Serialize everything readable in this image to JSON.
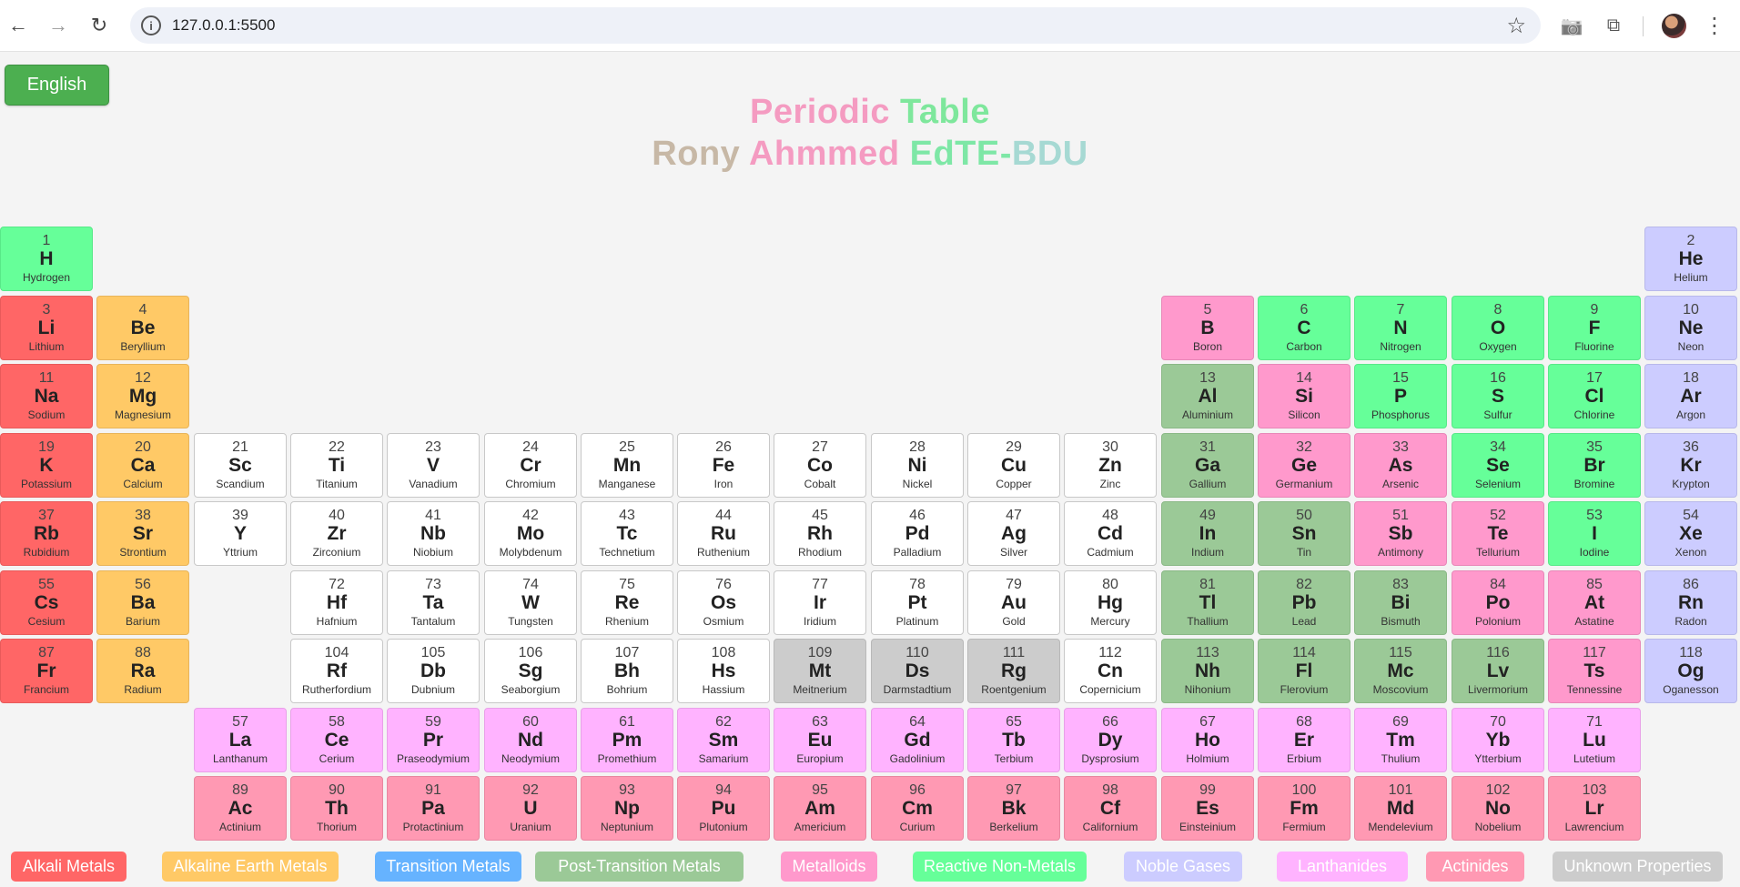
{
  "browser": {
    "url": "127.0.0.1:5500",
    "back_icon": "←",
    "forward_icon": "→",
    "reload_icon": "↻",
    "info_icon": "i",
    "star_icon": "☆",
    "camera_icon": "📷",
    "extension_icon": "⧉",
    "menu_icon": "⋮"
  },
  "page": {
    "language_button": "English",
    "title_line1": [
      {
        "text": "Periodic ",
        "color": "#f49bc1"
      },
      {
        "text": "Table",
        "color": "#7ee79c"
      }
    ],
    "title_line2": [
      {
        "text": "Rony ",
        "color": "#c7b8a6"
      },
      {
        "text": "Ahmmed ",
        "color": "#f49bc1"
      },
      {
        "text": "EdTE-",
        "color": "#7ee7a6"
      },
      {
        "text": "BDU",
        "color": "#a6d9d3"
      }
    ]
  },
  "elements": [
    {
      "n": 1,
      "s": "H",
      "name": "Hydrogen",
      "c": "nonmetal",
      "col": 1,
      "row": 1
    },
    {
      "n": 2,
      "s": "He",
      "name": "Helium",
      "c": "noble",
      "col": 18,
      "row": 1
    },
    {
      "n": 3,
      "s": "Li",
      "name": "Lithium",
      "c": "alkali",
      "col": 1,
      "row": 2
    },
    {
      "n": 4,
      "s": "Be",
      "name": "Beryllium",
      "c": "alkaline",
      "col": 2,
      "row": 2
    },
    {
      "n": 5,
      "s": "B",
      "name": "Boron",
      "c": "metalloid",
      "col": 13,
      "row": 2
    },
    {
      "n": 6,
      "s": "C",
      "name": "Carbon",
      "c": "nonmetal",
      "col": 14,
      "row": 2
    },
    {
      "n": 7,
      "s": "N",
      "name": "Nitrogen",
      "c": "nonmetal",
      "col": 15,
      "row": 2
    },
    {
      "n": 8,
      "s": "O",
      "name": "Oxygen",
      "c": "nonmetal",
      "col": 16,
      "row": 2
    },
    {
      "n": 9,
      "s": "F",
      "name": "Fluorine",
      "c": "nonmetal",
      "col": 17,
      "row": 2
    },
    {
      "n": 10,
      "s": "Ne",
      "name": "Neon",
      "c": "noble",
      "col": 18,
      "row": 2
    },
    {
      "n": 11,
      "s": "Na",
      "name": "Sodium",
      "c": "alkali",
      "col": 1,
      "row": 3
    },
    {
      "n": 12,
      "s": "Mg",
      "name": "Magnesium",
      "c": "alkaline",
      "col": 2,
      "row": 3
    },
    {
      "n": 13,
      "s": "Al",
      "name": "Aluminium",
      "c": "post",
      "col": 13,
      "row": 3
    },
    {
      "n": 14,
      "s": "Si",
      "name": "Silicon",
      "c": "metalloid",
      "col": 14,
      "row": 3
    },
    {
      "n": 15,
      "s": "P",
      "name": "Phosphorus",
      "c": "nonmetal",
      "col": 15,
      "row": 3
    },
    {
      "n": 16,
      "s": "S",
      "name": "Sulfur",
      "c": "nonmetal",
      "col": 16,
      "row": 3
    },
    {
      "n": 17,
      "s": "Cl",
      "name": "Chlorine",
      "c": "nonmetal",
      "col": 17,
      "row": 3
    },
    {
      "n": 18,
      "s": "Ar",
      "name": "Argon",
      "c": "noble",
      "col": 18,
      "row": 3
    },
    {
      "n": 19,
      "s": "K",
      "name": "Potassium",
      "c": "alkali",
      "col": 1,
      "row": 4
    },
    {
      "n": 20,
      "s": "Ca",
      "name": "Calcium",
      "c": "alkaline",
      "col": 2,
      "row": 4
    },
    {
      "n": 21,
      "s": "Sc",
      "name": "Scandium",
      "c": "transition",
      "col": 3,
      "row": 4
    },
    {
      "n": 22,
      "s": "Ti",
      "name": "Titanium",
      "c": "transition",
      "col": 4,
      "row": 4
    },
    {
      "n": 23,
      "s": "V",
      "name": "Vanadium",
      "c": "transition",
      "col": 5,
      "row": 4
    },
    {
      "n": 24,
      "s": "Cr",
      "name": "Chromium",
      "c": "transition",
      "col": 6,
      "row": 4
    },
    {
      "n": 25,
      "s": "Mn",
      "name": "Manganese",
      "c": "transition",
      "col": 7,
      "row": 4
    },
    {
      "n": 26,
      "s": "Fe",
      "name": "Iron",
      "c": "transition",
      "col": 8,
      "row": 4
    },
    {
      "n": 27,
      "s": "Co",
      "name": "Cobalt",
      "c": "transition",
      "col": 9,
      "row": 4
    },
    {
      "n": 28,
      "s": "Ni",
      "name": "Nickel",
      "c": "transition",
      "col": 10,
      "row": 4
    },
    {
      "n": 29,
      "s": "Cu",
      "name": "Copper",
      "c": "transition",
      "col": 11,
      "row": 4
    },
    {
      "n": 30,
      "s": "Zn",
      "name": "Zinc",
      "c": "transition",
      "col": 12,
      "row": 4
    },
    {
      "n": 31,
      "s": "Ga",
      "name": "Gallium",
      "c": "post",
      "col": 13,
      "row": 4
    },
    {
      "n": 32,
      "s": "Ge",
      "name": "Germanium",
      "c": "metalloid",
      "col": 14,
      "row": 4
    },
    {
      "n": 33,
      "s": "As",
      "name": "Arsenic",
      "c": "metalloid",
      "col": 15,
      "row": 4
    },
    {
      "n": 34,
      "s": "Se",
      "name": "Selenium",
      "c": "nonmetal",
      "col": 16,
      "row": 4
    },
    {
      "n": 35,
      "s": "Br",
      "name": "Bromine",
      "c": "nonmetal",
      "col": 17,
      "row": 4
    },
    {
      "n": 36,
      "s": "Kr",
      "name": "Krypton",
      "c": "noble",
      "col": 18,
      "row": 4
    },
    {
      "n": 37,
      "s": "Rb",
      "name": "Rubidium",
      "c": "alkali",
      "col": 1,
      "row": 5
    },
    {
      "n": 38,
      "s": "Sr",
      "name": "Strontium",
      "c": "alkaline",
      "col": 2,
      "row": 5
    },
    {
      "n": 39,
      "s": "Y",
      "name": "Yttrium",
      "c": "transition",
      "col": 3,
      "row": 5
    },
    {
      "n": 40,
      "s": "Zr",
      "name": "Zirconium",
      "c": "transition",
      "col": 4,
      "row": 5
    },
    {
      "n": 41,
      "s": "Nb",
      "name": "Niobium",
      "c": "transition",
      "col": 5,
      "row": 5
    },
    {
      "n": 42,
      "s": "Mo",
      "name": "Molybdenum",
      "c": "transition",
      "col": 6,
      "row": 5
    },
    {
      "n": 43,
      "s": "Tc",
      "name": "Technetium",
      "c": "transition",
      "col": 7,
      "row": 5
    },
    {
      "n": 44,
      "s": "Ru",
      "name": "Ruthenium",
      "c": "transition",
      "col": 8,
      "row": 5
    },
    {
      "n": 45,
      "s": "Rh",
      "name": "Rhodium",
      "c": "transition",
      "col": 9,
      "row": 5
    },
    {
      "n": 46,
      "s": "Pd",
      "name": "Palladium",
      "c": "transition",
      "col": 10,
      "row": 5
    },
    {
      "n": 47,
      "s": "Ag",
      "name": "Silver",
      "c": "transition",
      "col": 11,
      "row": 5
    },
    {
      "n": 48,
      "s": "Cd",
      "name": "Cadmium",
      "c": "transition",
      "col": 12,
      "row": 5
    },
    {
      "n": 49,
      "s": "In",
      "name": "Indium",
      "c": "post",
      "col": 13,
      "row": 5
    },
    {
      "n": 50,
      "s": "Sn",
      "name": "Tin",
      "c": "post",
      "col": 14,
      "row": 5
    },
    {
      "n": 51,
      "s": "Sb",
      "name": "Antimony",
      "c": "metalloid",
      "col": 15,
      "row": 5
    },
    {
      "n": 52,
      "s": "Te",
      "name": "Tellurium",
      "c": "metalloid",
      "col": 16,
      "row": 5
    },
    {
      "n": 53,
      "s": "I",
      "name": "Iodine",
      "c": "nonmetal",
      "col": 17,
      "row": 5
    },
    {
      "n": 54,
      "s": "Xe",
      "name": "Xenon",
      "c": "noble",
      "col": 18,
      "row": 5
    },
    {
      "n": 55,
      "s": "Cs",
      "name": "Cesium",
      "c": "alkali",
      "col": 1,
      "row": 6
    },
    {
      "n": 56,
      "s": "Ba",
      "name": "Barium",
      "c": "alkaline",
      "col": 2,
      "row": 6
    },
    {
      "n": 72,
      "s": "Hf",
      "name": "Hafnium",
      "c": "transition",
      "col": 4,
      "row": 6
    },
    {
      "n": 73,
      "s": "Ta",
      "name": "Tantalum",
      "c": "transition",
      "col": 5,
      "row": 6
    },
    {
      "n": 74,
      "s": "W",
      "name": "Tungsten",
      "c": "transition",
      "col": 6,
      "row": 6
    },
    {
      "n": 75,
      "s": "Re",
      "name": "Rhenium",
      "c": "transition",
      "col": 7,
      "row": 6
    },
    {
      "n": 76,
      "s": "Os",
      "name": "Osmium",
      "c": "transition",
      "col": 8,
      "row": 6
    },
    {
      "n": 77,
      "s": "Ir",
      "name": "Iridium",
      "c": "transition",
      "col": 9,
      "row": 6
    },
    {
      "n": 78,
      "s": "Pt",
      "name": "Platinum",
      "c": "transition",
      "col": 10,
      "row": 6
    },
    {
      "n": 79,
      "s": "Au",
      "name": "Gold",
      "c": "transition",
      "col": 11,
      "row": 6
    },
    {
      "n": 80,
      "s": "Hg",
      "name": "Mercury",
      "c": "transition",
      "col": 12,
      "row": 6
    },
    {
      "n": 81,
      "s": "Tl",
      "name": "Thallium",
      "c": "post",
      "col": 13,
      "row": 6
    },
    {
      "n": 82,
      "s": "Pb",
      "name": "Lead",
      "c": "post",
      "col": 14,
      "row": 6
    },
    {
      "n": 83,
      "s": "Bi",
      "name": "Bismuth",
      "c": "post",
      "col": 15,
      "row": 6
    },
    {
      "n": 84,
      "s": "Po",
      "name": "Polonium",
      "c": "metalloid",
      "col": 16,
      "row": 6
    },
    {
      "n": 85,
      "s": "At",
      "name": "Astatine",
      "c": "metalloid",
      "col": 17,
      "row": 6
    },
    {
      "n": 86,
      "s": "Rn",
      "name": "Radon",
      "c": "noble",
      "col": 18,
      "row": 6
    },
    {
      "n": 87,
      "s": "Fr",
      "name": "Francium",
      "c": "alkali",
      "col": 1,
      "row": 7
    },
    {
      "n": 88,
      "s": "Ra",
      "name": "Radium",
      "c": "alkaline",
      "col": 2,
      "row": 7
    },
    {
      "n": 104,
      "s": "Rf",
      "name": "Rutherfordium",
      "c": "transition",
      "col": 4,
      "row": 7
    },
    {
      "n": 105,
      "s": "Db",
      "name": "Dubnium",
      "c": "transition",
      "col": 5,
      "row": 7
    },
    {
      "n": 106,
      "s": "Sg",
      "name": "Seaborgium",
      "c": "transition",
      "col": 6,
      "row": 7
    },
    {
      "n": 107,
      "s": "Bh",
      "name": "Bohrium",
      "c": "transition",
      "col": 7,
      "row": 7
    },
    {
      "n": 108,
      "s": "Hs",
      "name": "Hassium",
      "c": "transition",
      "col": 8,
      "row": 7
    },
    {
      "n": 109,
      "s": "Mt",
      "name": "Meitnerium",
      "c": "unknown",
      "col": 9,
      "row": 7
    },
    {
      "n": 110,
      "s": "Ds",
      "name": "Darmstadtium",
      "c": "unknown",
      "col": 10,
      "row": 7
    },
    {
      "n": 111,
      "s": "Rg",
      "name": "Roentgenium",
      "c": "unknown",
      "col": 11,
      "row": 7
    },
    {
      "n": 112,
      "s": "Cn",
      "name": "Copernicium",
      "c": "transition",
      "col": 12,
      "row": 7
    },
    {
      "n": 113,
      "s": "Nh",
      "name": "Nihonium",
      "c": "post",
      "col": 13,
      "row": 7
    },
    {
      "n": 114,
      "s": "Fl",
      "name": "Flerovium",
      "c": "post",
      "col": 14,
      "row": 7
    },
    {
      "n": 115,
      "s": "Mc",
      "name": "Moscovium",
      "c": "post",
      "col": 15,
      "row": 7
    },
    {
      "n": 116,
      "s": "Lv",
      "name": "Livermorium",
      "c": "post",
      "col": 16,
      "row": 7
    },
    {
      "n": 117,
      "s": "Ts",
      "name": "Tennessine",
      "c": "metalloid",
      "col": 17,
      "row": 7
    },
    {
      "n": 118,
      "s": "Og",
      "name": "Oganesson",
      "c": "noble",
      "col": 18,
      "row": 7
    },
    {
      "n": 57,
      "s": "La",
      "name": "Lanthanum",
      "c": "lanth",
      "col": 3,
      "row": 8
    },
    {
      "n": 58,
      "s": "Ce",
      "name": "Cerium",
      "c": "lanth",
      "col": 4,
      "row": 8
    },
    {
      "n": 59,
      "s": "Pr",
      "name": "Praseodymium",
      "c": "lanth",
      "col": 5,
      "row": 8
    },
    {
      "n": 60,
      "s": "Nd",
      "name": "Neodymium",
      "c": "lanth",
      "col": 6,
      "row": 8
    },
    {
      "n": 61,
      "s": "Pm",
      "name": "Promethium",
      "c": "lanth",
      "col": 7,
      "row": 8
    },
    {
      "n": 62,
      "s": "Sm",
      "name": "Samarium",
      "c": "lanth",
      "col": 8,
      "row": 8
    },
    {
      "n": 63,
      "s": "Eu",
      "name": "Europium",
      "c": "lanth",
      "col": 9,
      "row": 8
    },
    {
      "n": 64,
      "s": "Gd",
      "name": "Gadolinium",
      "c": "lanth",
      "col": 10,
      "row": 8
    },
    {
      "n": 65,
      "s": "Tb",
      "name": "Terbium",
      "c": "lanth",
      "col": 11,
      "row": 8
    },
    {
      "n": 66,
      "s": "Dy",
      "name": "Dysprosium",
      "c": "lanth",
      "col": 12,
      "row": 8
    },
    {
      "n": 67,
      "s": "Ho",
      "name": "Holmium",
      "c": "lanth",
      "col": 13,
      "row": 8
    },
    {
      "n": 68,
      "s": "Er",
      "name": "Erbium",
      "c": "lanth",
      "col": 14,
      "row": 8
    },
    {
      "n": 69,
      "s": "Tm",
      "name": "Thulium",
      "c": "lanth",
      "col": 15,
      "row": 8
    },
    {
      "n": 70,
      "s": "Yb",
      "name": "Ytterbium",
      "c": "lanth",
      "col": 16,
      "row": 8
    },
    {
      "n": 71,
      "s": "Lu",
      "name": "Lutetium",
      "c": "lanth",
      "col": 17,
      "row": 8
    },
    {
      "n": 89,
      "s": "Ac",
      "name": "Actinium",
      "c": "actin",
      "col": 3,
      "row": 9
    },
    {
      "n": 90,
      "s": "Th",
      "name": "Thorium",
      "c": "actin",
      "col": 4,
      "row": 9
    },
    {
      "n": 91,
      "s": "Pa",
      "name": "Protactinium",
      "c": "actin",
      "col": 5,
      "row": 9
    },
    {
      "n": 92,
      "s": "U",
      "name": "Uranium",
      "c": "actin",
      "col": 6,
      "row": 9
    },
    {
      "n": 93,
      "s": "Np",
      "name": "Neptunium",
      "c": "actin",
      "col": 7,
      "row": 9
    },
    {
      "n": 94,
      "s": "Pu",
      "name": "Plutonium",
      "c": "actin",
      "col": 8,
      "row": 9
    },
    {
      "n": 95,
      "s": "Am",
      "name": "Americium",
      "c": "actin",
      "col": 9,
      "row": 9
    },
    {
      "n": 96,
      "s": "Cm",
      "name": "Curium",
      "c": "actin",
      "col": 10,
      "row": 9
    },
    {
      "n": 97,
      "s": "Bk",
      "name": "Berkelium",
      "c": "actin",
      "col": 11,
      "row": 9
    },
    {
      "n": 98,
      "s": "Cf",
      "name": "Californium",
      "c": "actin",
      "col": 12,
      "row": 9
    },
    {
      "n": 99,
      "s": "Es",
      "name": "Einsteinium",
      "c": "actin",
      "col": 13,
      "row": 9
    },
    {
      "n": 100,
      "s": "Fm",
      "name": "Fermium",
      "c": "actin",
      "col": 14,
      "row": 9
    },
    {
      "n": 101,
      "s": "Md",
      "name": "Mendelevium",
      "c": "actin",
      "col": 15,
      "row": 9
    },
    {
      "n": 102,
      "s": "No",
      "name": "Nobelium",
      "c": "actin",
      "col": 16,
      "row": 9
    },
    {
      "n": 103,
      "s": "Lr",
      "name": "Lawrencium",
      "c": "actin",
      "col": 17,
      "row": 9
    }
  ],
  "legend": [
    {
      "label": "Alkali Metals",
      "color": "#ff6666"
    },
    {
      "label": "Alkaline Earth Metals",
      "color": "#ffc966"
    },
    {
      "label": "Transition Metals",
      "color": "#66b3ff"
    },
    {
      "label": "Post-Transition Metals",
      "color": "#9bc997"
    },
    {
      "label": "Metalloids",
      "color": "#ff99cc"
    },
    {
      "label": "Reactive Non-Metals",
      "color": "#66ff99"
    },
    {
      "label": "Noble Gases",
      "color": "#ccccff"
    },
    {
      "label": "Lanthanides",
      "color": "#ffb3ff"
    },
    {
      "label": "Actinides",
      "color": "#ff99b3"
    },
    {
      "label": "Unknown Properties",
      "color": "#cccccc"
    }
  ]
}
